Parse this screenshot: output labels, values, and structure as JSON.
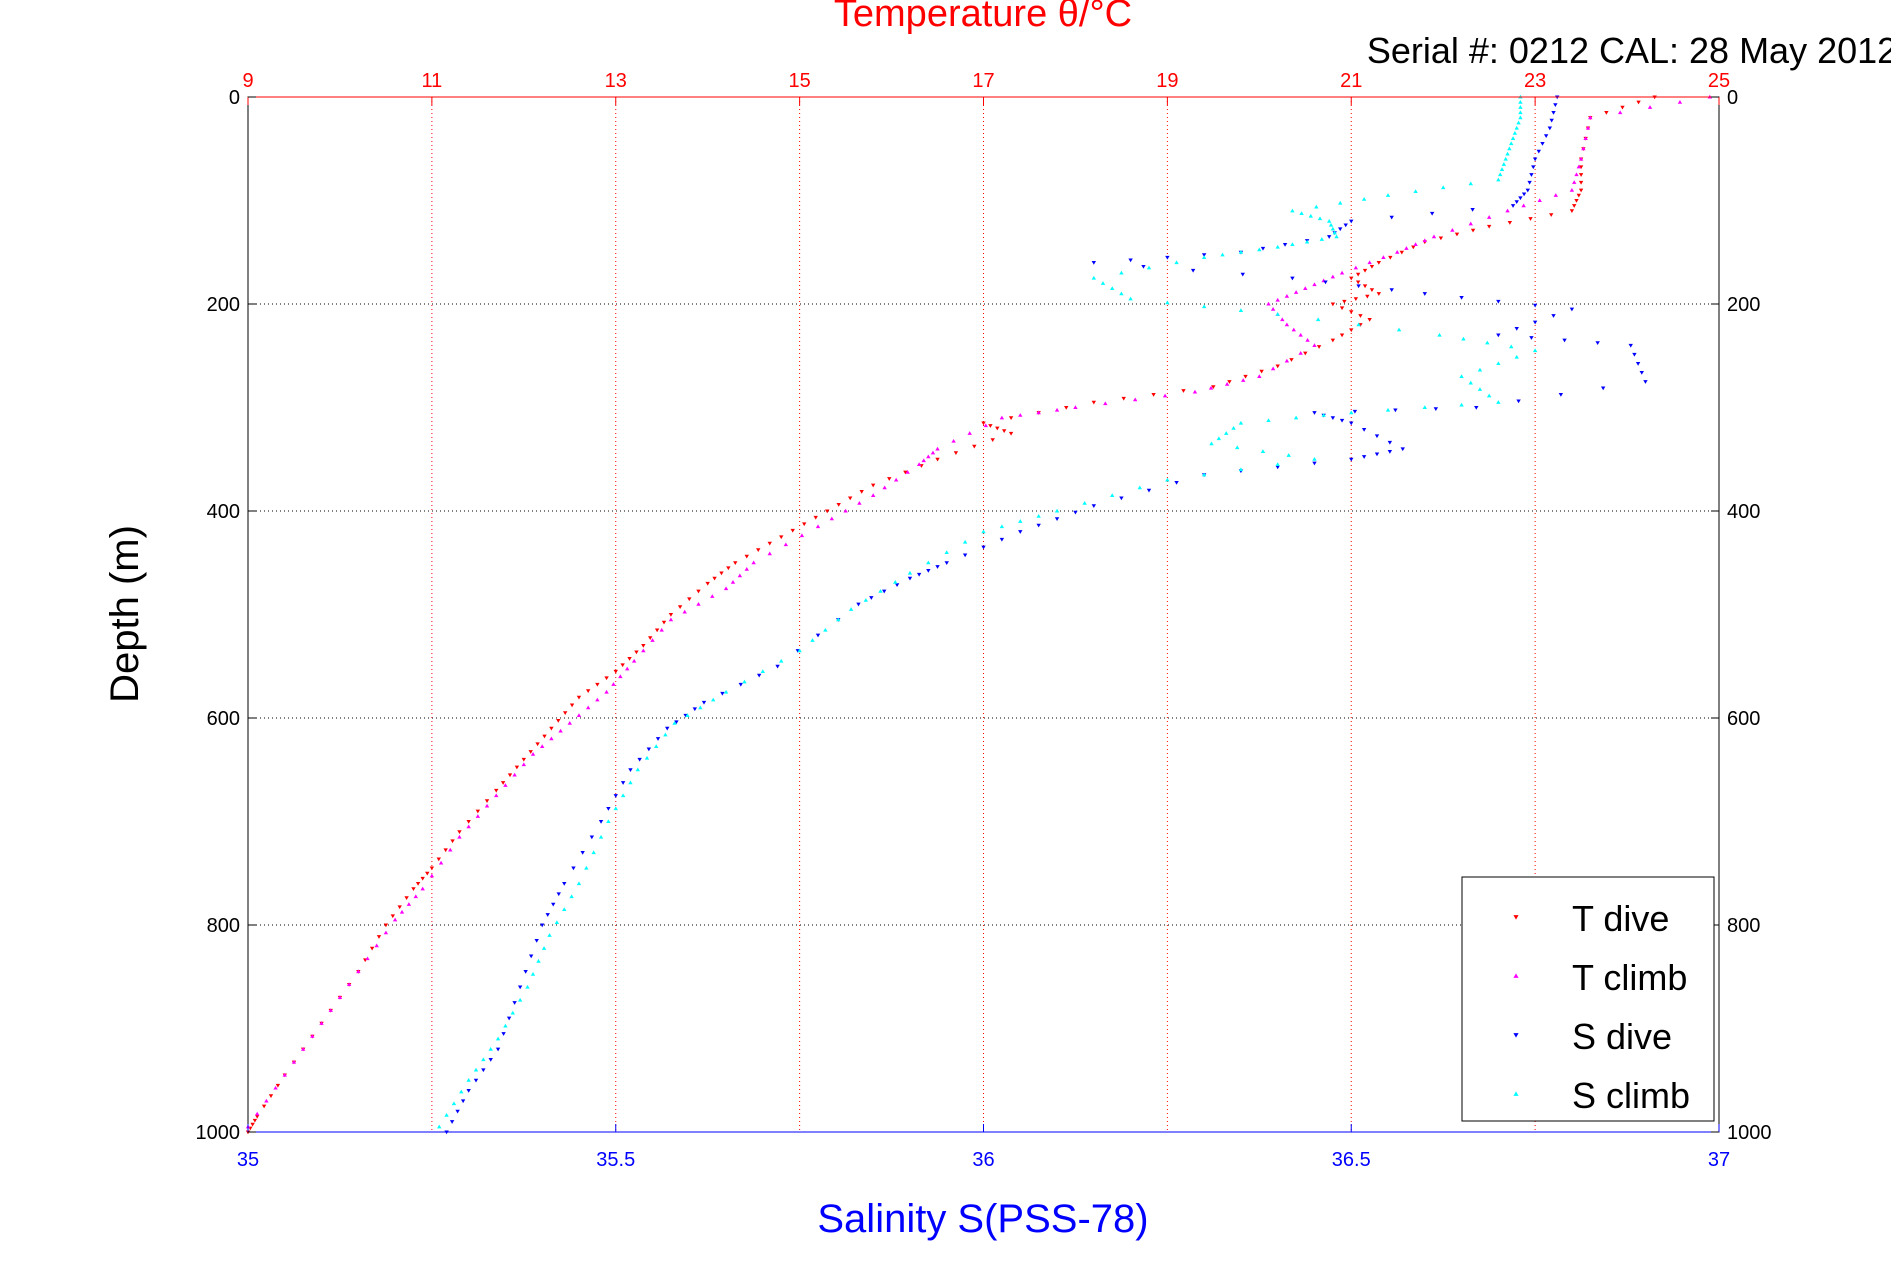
{
  "chart_data": {
    "type": "scatter",
    "title": "Temperature θ/°C",
    "subtitle": "Serial #: 0212  CAL: 28 May 2012",
    "ylabel": "Depth (m)",
    "xlabel": "Salinity S(PSS-78)",
    "ylim": [
      0,
      1000
    ],
    "y_reversed": true,
    "y_ticks": [
      "0",
      "200",
      "400",
      "600",
      "800",
      "1000"
    ],
    "y_tick_values": [
      0,
      200,
      400,
      600,
      800,
      1000
    ],
    "temperature_axis": {
      "position": "top",
      "range": [
        9,
        25
      ],
      "ticks": [
        "9",
        "11",
        "13",
        "15",
        "17",
        "19",
        "21",
        "23",
        "25"
      ],
      "tick_values": [
        9,
        11,
        13,
        15,
        17,
        19,
        21,
        23,
        25
      ],
      "color": "#ff0000"
    },
    "salinity_axis": {
      "position": "bottom",
      "range": [
        35,
        37
      ],
      "ticks": [
        "35",
        "35.5",
        "36",
        "36.5",
        "37"
      ],
      "tick_values": [
        35,
        35.5,
        36,
        36.5,
        37
      ],
      "color": "#0000ff"
    },
    "grid": true,
    "legend_position": "bottom-right",
    "series": [
      {
        "name": "T dive",
        "axis": "temperature",
        "color": "#ff0000",
        "marker": "triangle-down",
        "points": [
          [
            24.3,
            0
          ],
          [
            23.6,
            20
          ],
          [
            23.5,
            60
          ],
          [
            23.5,
            90
          ],
          [
            23.4,
            110
          ],
          [
            22.5,
            125
          ],
          [
            21.8,
            140
          ],
          [
            21.3,
            160
          ],
          [
            21.0,
            175
          ],
          [
            21.3,
            190
          ],
          [
            20.8,
            200
          ],
          [
            21.2,
            215
          ],
          [
            20.8,
            235
          ],
          [
            20.2,
            260
          ],
          [
            19.5,
            280
          ],
          [
            18.2,
            295
          ],
          [
            17.0,
            315
          ],
          [
            17.3,
            325
          ],
          [
            16.5,
            350
          ],
          [
            15.8,
            375
          ],
          [
            15.3,
            400
          ],
          [
            14.8,
            425
          ],
          [
            14.3,
            450
          ],
          [
            14.0,
            470
          ],
          [
            13.6,
            500
          ],
          [
            13.3,
            530
          ],
          [
            13.0,
            555
          ],
          [
            12.6,
            580
          ],
          [
            12.3,
            610
          ],
          [
            12.0,
            640
          ],
          [
            11.7,
            670
          ],
          [
            11.3,
            710
          ],
          [
            11.0,
            745
          ],
          [
            10.8,
            765
          ],
          [
            10.5,
            800
          ],
          [
            10.2,
            845
          ],
          [
            9.8,
            895
          ],
          [
            9.4,
            945
          ],
          [
            9.1,
            985
          ],
          [
            9.0,
            1000
          ]
        ]
      },
      {
        "name": "T climb",
        "axis": "temperature",
        "color": "#ff00ff",
        "marker": "triangle-up",
        "points": [
          [
            24.9,
            0
          ],
          [
            23.6,
            20
          ],
          [
            23.5,
            60
          ],
          [
            23.4,
            90
          ],
          [
            22.7,
            110
          ],
          [
            21.9,
            135
          ],
          [
            21.5,
            150
          ],
          [
            20.9,
            170
          ],
          [
            20.5,
            185
          ],
          [
            20.1,
            200
          ],
          [
            20.3,
            220
          ],
          [
            20.6,
            240
          ],
          [
            20.0,
            270
          ],
          [
            19.3,
            285
          ],
          [
            18.0,
            300
          ],
          [
            17.2,
            310
          ],
          [
            16.5,
            340
          ],
          [
            16.3,
            355
          ],
          [
            15.8,
            385
          ],
          [
            15.2,
            415
          ],
          [
            14.5,
            450
          ],
          [
            14.2,
            475
          ],
          [
            13.6,
            505
          ],
          [
            13.2,
            545
          ],
          [
            12.9,
            575
          ],
          [
            12.5,
            605
          ],
          [
            12.1,
            635
          ],
          [
            11.7,
            675
          ],
          [
            11.3,
            715
          ],
          [
            10.9,
            765
          ],
          [
            10.6,
            795
          ],
          [
            10.2,
            845
          ],
          [
            9.8,
            895
          ],
          [
            9.4,
            945
          ],
          [
            9.0,
            995
          ]
        ]
      },
      {
        "name": "S dive",
        "axis": "salinity",
        "color": "#0000ff",
        "marker": "triangle-down",
        "points": [
          [
            36.78,
            0
          ],
          [
            36.77,
            30
          ],
          [
            36.75,
            60
          ],
          [
            36.74,
            90
          ],
          [
            36.72,
            105
          ],
          [
            36.5,
            120
          ],
          [
            36.47,
            135
          ],
          [
            36.35,
            150
          ],
          [
            36.15,
            160
          ],
          [
            36.42,
            175
          ],
          [
            36.6,
            190
          ],
          [
            36.8,
            205
          ],
          [
            36.7,
            230
          ],
          [
            36.88,
            240
          ],
          [
            36.9,
            275
          ],
          [
            36.67,
            300
          ],
          [
            36.45,
            305
          ],
          [
            36.5,
            315
          ],
          [
            36.57,
            340
          ],
          [
            36.5,
            350
          ],
          [
            36.3,
            365
          ],
          [
            36.15,
            395
          ],
          [
            36.05,
            420
          ],
          [
            35.95,
            450
          ],
          [
            35.9,
            465
          ],
          [
            35.83,
            490
          ],
          [
            35.72,
            550
          ],
          [
            35.62,
            585
          ],
          [
            35.57,
            610
          ],
          [
            35.52,
            650
          ],
          [
            35.48,
            700
          ],
          [
            35.43,
            760
          ],
          [
            35.4,
            800
          ],
          [
            35.37,
            860
          ],
          [
            35.34,
            920
          ],
          [
            35.3,
            960
          ],
          [
            35.27,
            1000
          ]
        ]
      },
      {
        "name": "S climb",
        "axis": "salinity",
        "color": "#00ffff",
        "marker": "triangle-up",
        "points": [
          [
            36.73,
            0
          ],
          [
            36.73,
            20
          ],
          [
            36.72,
            40
          ],
          [
            36.71,
            60
          ],
          [
            36.7,
            80
          ],
          [
            36.55,
            95
          ],
          [
            36.42,
            110
          ],
          [
            36.47,
            120
          ],
          [
            36.48,
            135
          ],
          [
            36.4,
            145
          ],
          [
            36.3,
            155
          ],
          [
            36.15,
            175
          ],
          [
            36.2,
            195
          ],
          [
            36.4,
            210
          ],
          [
            36.62,
            230
          ],
          [
            36.75,
            245
          ],
          [
            36.65,
            270
          ],
          [
            36.7,
            295
          ],
          [
            36.5,
            305
          ],
          [
            36.35,
            315
          ],
          [
            36.31,
            335
          ],
          [
            36.45,
            350
          ],
          [
            36.25,
            370
          ],
          [
            36.1,
            400
          ],
          [
            36.0,
            420
          ],
          [
            35.9,
            460
          ],
          [
            35.82,
            495
          ],
          [
            35.75,
            535
          ],
          [
            35.65,
            575
          ],
          [
            35.58,
            605
          ],
          [
            35.53,
            650
          ],
          [
            35.49,
            700
          ],
          [
            35.45,
            760
          ],
          [
            35.41,
            810
          ],
          [
            35.38,
            860
          ],
          [
            35.34,
            910
          ],
          [
            35.3,
            950
          ],
          [
            35.26,
            995
          ]
        ]
      }
    ]
  }
}
